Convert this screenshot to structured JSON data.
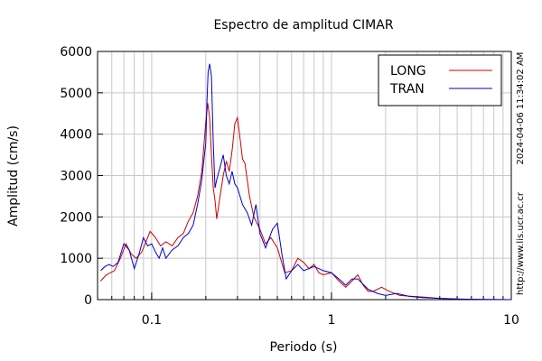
{
  "chart_data": {
    "type": "line",
    "title": "Espectro de amplitud CIMAR",
    "xlabel": "Periodo (s)",
    "ylabel": "Amplitud (cm/s)",
    "xscale": "log",
    "xlim": [
      0.05,
      10
    ],
    "ylim": [
      0,
      6000
    ],
    "x_ticks": [
      0.1,
      1,
      10
    ],
    "x_tick_labels": [
      "0.1",
      "1",
      "10"
    ],
    "y_ticks": [
      0,
      1000,
      2000,
      3000,
      4000,
      5000,
      6000
    ],
    "y_tick_labels": [
      "0",
      "1000",
      "2000",
      "3000",
      "4000",
      "5000",
      "6000"
    ],
    "grid": true,
    "legend_position": "top-right",
    "series": [
      {
        "name": "LONG",
        "color": "#cc0000",
        "x": [
          0.052,
          0.056,
          0.062,
          0.067,
          0.072,
          0.077,
          0.082,
          0.088,
          0.093,
          0.098,
          0.105,
          0.112,
          0.12,
          0.13,
          0.14,
          0.15,
          0.16,
          0.17,
          0.18,
          0.19,
          0.2,
          0.205,
          0.21,
          0.215,
          0.22,
          0.225,
          0.23,
          0.24,
          0.25,
          0.26,
          0.27,
          0.28,
          0.29,
          0.3,
          0.31,
          0.32,
          0.33,
          0.35,
          0.37,
          0.4,
          0.43,
          0.46,
          0.5,
          0.55,
          0.6,
          0.65,
          0.7,
          0.75,
          0.8,
          0.85,
          0.9,
          1.0,
          1.1,
          1.2,
          1.3,
          1.4,
          1.5,
          1.6,
          1.7,
          1.9,
          2.1,
          2.4,
          2.8,
          3.3,
          4.0,
          5.0,
          7.0,
          10.0
        ],
        "y": [
          450,
          600,
          700,
          1000,
          1350,
          1100,
          1000,
          1150,
          1400,
          1650,
          1500,
          1300,
          1400,
          1300,
          1500,
          1600,
          1900,
          2100,
          2500,
          3100,
          4300,
          4750,
          4400,
          3500,
          2700,
          2400,
          1950,
          2500,
          3000,
          3350,
          3100,
          3600,
          4250,
          4400,
          3900,
          3400,
          3300,
          2500,
          2000,
          1700,
          1350,
          1500,
          1250,
          650,
          700,
          1000,
          900,
          750,
          850,
          650,
          600,
          650,
          450,
          300,
          450,
          600,
          350,
          200,
          200,
          300,
          200,
          100,
          80,
          60,
          30,
          15,
          5,
          0
        ]
      },
      {
        "name": "TRAN",
        "color": "#0000cc",
        "x": [
          0.052,
          0.055,
          0.058,
          0.061,
          0.065,
          0.07,
          0.075,
          0.08,
          0.085,
          0.09,
          0.095,
          0.1,
          0.105,
          0.11,
          0.115,
          0.12,
          0.13,
          0.14,
          0.15,
          0.16,
          0.17,
          0.18,
          0.19,
          0.2,
          0.203,
          0.206,
          0.21,
          0.215,
          0.22,
          0.225,
          0.23,
          0.24,
          0.25,
          0.26,
          0.27,
          0.28,
          0.29,
          0.3,
          0.32,
          0.34,
          0.36,
          0.38,
          0.4,
          0.43,
          0.47,
          0.5,
          0.53,
          0.56,
          0.6,
          0.65,
          0.7,
          0.8,
          0.9,
          1.0,
          1.1,
          1.2,
          1.3,
          1.4,
          1.6,
          1.8,
          2.0,
          2.3,
          2.7,
          3.2,
          4.0,
          5.0,
          7.0,
          10.0
        ],
        "y": [
          700,
          800,
          850,
          800,
          900,
          1350,
          1200,
          750,
          1100,
          1500,
          1300,
          1350,
          1150,
          1000,
          1250,
          1000,
          1200,
          1300,
          1500,
          1600,
          1800,
          2300,
          2900,
          3800,
          4800,
          5500,
          5700,
          5400,
          3800,
          2700,
          2900,
          3200,
          3500,
          3000,
          2800,
          3100,
          2800,
          2700,
          2300,
          2100,
          1800,
          2300,
          1600,
          1250,
          1700,
          1850,
          1100,
          500,
          700,
          850,
          700,
          800,
          700,
          650,
          500,
          350,
          500,
          500,
          250,
          150,
          100,
          150,
          80,
          50,
          30,
          15,
          5,
          0
        ]
      }
    ]
  },
  "side_labels": {
    "timestamp": "2024-04-06 11:34:02 AM",
    "url": "http://www.lis.ucr.ac.cr"
  }
}
